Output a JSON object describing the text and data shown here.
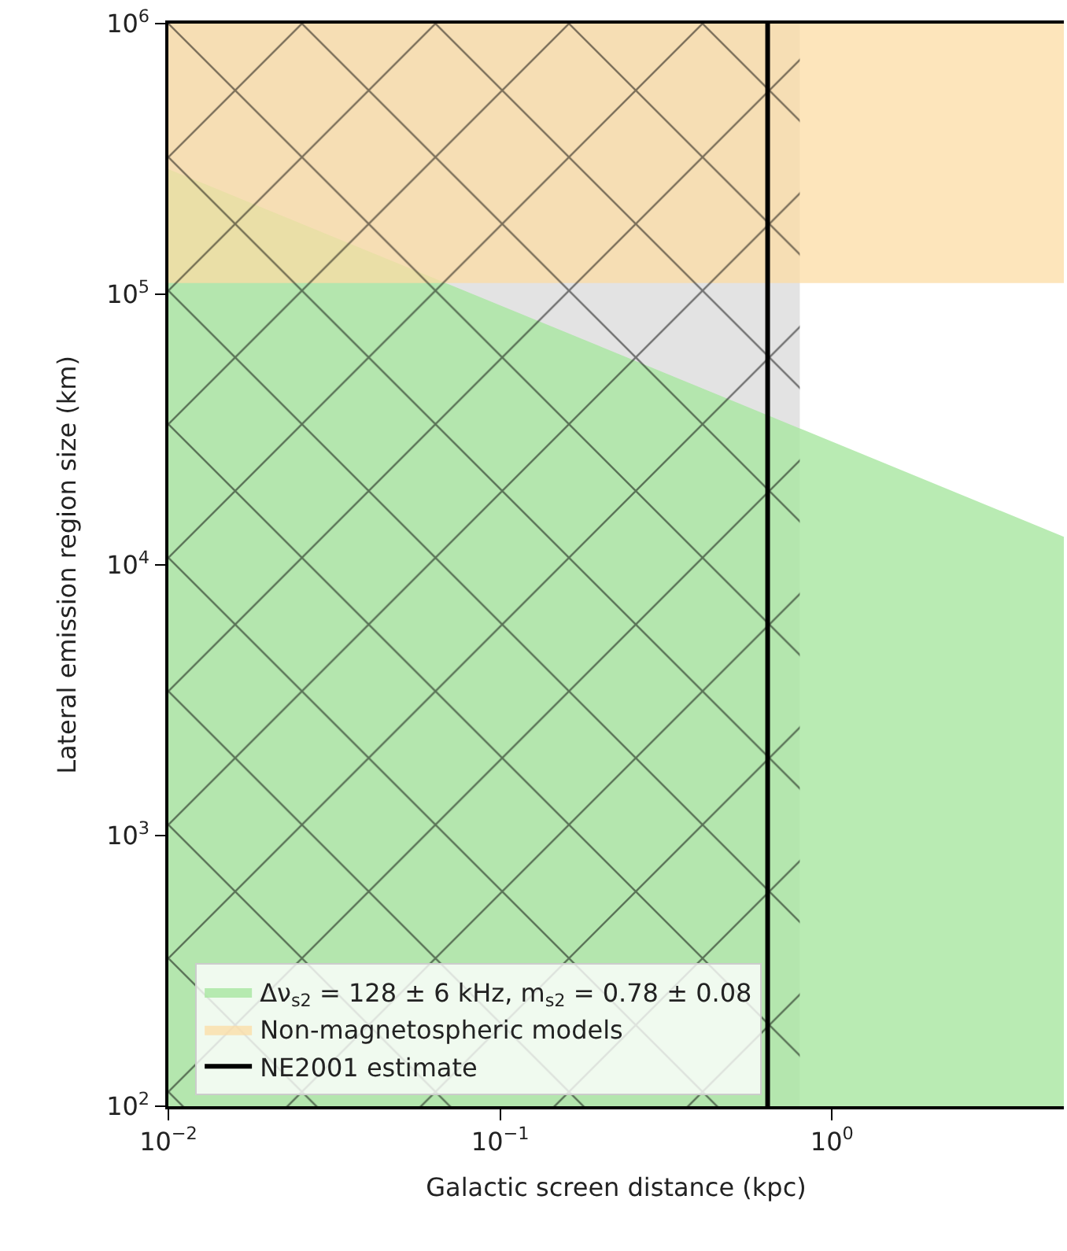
{
  "chart_data": {
    "type": "area",
    "xlabel": "Galactic screen distance (kpc)",
    "ylabel": "Lateral emission region size (km)",
    "log": "xy",
    "x": [
      0.01,
      5
    ],
    "series": [
      {
        "name": "Δν$_{s2}$ = 128 ± 6 kHz, m$_{s2}$ = 0.78 ± 0.08",
        "color": "#a8e6a0",
        "values": [
          290000,
          12700
        ]
      }
    ],
    "bands": [
      {
        "axis": "x",
        "from": 0.01,
        "to": 0.8,
        "color": "#e3e3e3"
      },
      {
        "axis": "y",
        "from": 110000,
        "to": 1000000,
        "label": "Non-magnetospheric models",
        "color": "#fcdca4"
      }
    ],
    "ref_lines": [
      {
        "axis": "x",
        "value": 0.64,
        "label": "NE2001 estimate",
        "color": "#000000",
        "line_style": "solid"
      }
    ],
    "xlim": [
      0.01,
      5
    ],
    "ylim": [
      100,
      1000000
    ],
    "xticks": [
      {
        "value": 0.01,
        "label": "10$^{−2}$"
      },
      {
        "value": 0.1,
        "label": "10$^{−1}$"
      },
      {
        "value": 1,
        "label": "10$^{0}$"
      }
    ],
    "yticks": [
      {
        "value": 100,
        "label": "10$^{2}$"
      },
      {
        "value": 1000,
        "label": "10$^{3}$"
      },
      {
        "value": 10000,
        "label": "10$^{4}$"
      },
      {
        "value": 100000,
        "label": "10$^{5}$"
      },
      {
        "value": 1000000,
        "label": "10$^{6}$"
      }
    ],
    "legend": "bottom left"
  }
}
